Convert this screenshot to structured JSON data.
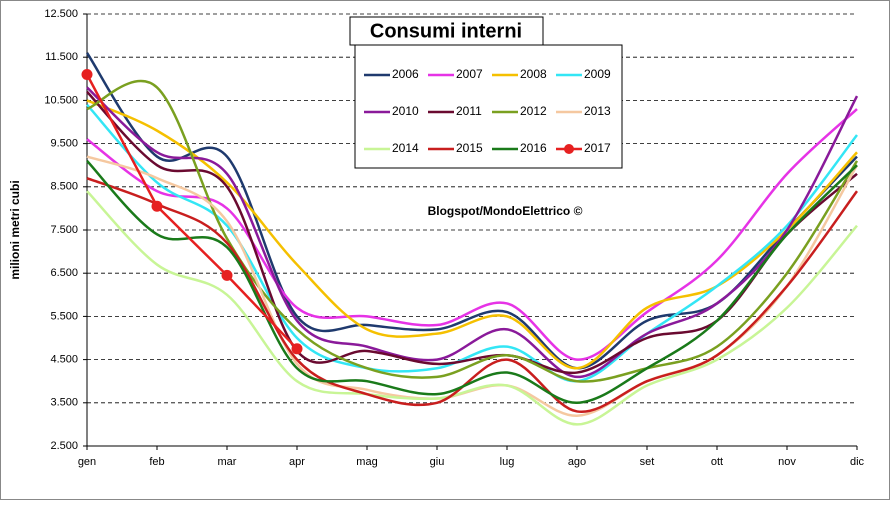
{
  "chart_data": {
    "type": "line",
    "title": "Consumi interni",
    "ylabel": "milioni metri cubi",
    "annotation": "Blogspot/MondoElettrico ©",
    "categories": [
      "gen",
      "feb",
      "mar",
      "apr",
      "mag",
      "giu",
      "lug",
      "ago",
      "set",
      "ott",
      "nov",
      "dic"
    ],
    "ylim": [
      2500,
      12500
    ],
    "yticks": [
      {
        "value": 2500,
        "label": "2.500"
      },
      {
        "value": 3500,
        "label": "3.500"
      },
      {
        "value": 4500,
        "label": "4.500"
      },
      {
        "value": 5500,
        "label": "5.500"
      },
      {
        "value": 6500,
        "label": "6.500"
      },
      {
        "value": 7500,
        "label": "7.500"
      },
      {
        "value": 8500,
        "label": "8.500"
      },
      {
        "value": 9500,
        "label": "9.500"
      },
      {
        "value": 10500,
        "label": "10.500"
      },
      {
        "value": 11500,
        "label": "11.500"
      },
      {
        "value": 12500,
        "label": "12.500"
      }
    ],
    "grid": true,
    "series": [
      {
        "name": "2006",
        "color": "#1f3a6e",
        "smooth": true,
        "values": [
          11600,
          9200,
          9200,
          5500,
          5300,
          5200,
          5600,
          4300,
          5400,
          5800,
          7500,
          9200
        ]
      },
      {
        "name": "2007",
        "color": "#e633e6",
        "smooth": true,
        "values": [
          9600,
          8400,
          8000,
          5700,
          5500,
          5300,
          5800,
          4500,
          5600,
          6800,
          8800,
          10300
        ]
      },
      {
        "name": "2008",
        "color": "#f5c000",
        "smooth": true,
        "values": [
          10500,
          9800,
          8600,
          6700,
          5200,
          5100,
          5500,
          4300,
          5700,
          6200,
          7500,
          9300
        ]
      },
      {
        "name": "2009",
        "color": "#33e6f5",
        "smooth": true,
        "values": [
          10400,
          8600,
          7600,
          5000,
          4300,
          4300,
          4800,
          4000,
          5100,
          6200,
          7600,
          9700
        ]
      },
      {
        "name": "2010",
        "color": "#8a1a9a",
        "smooth": true,
        "values": [
          10800,
          9300,
          8800,
          5400,
          4800,
          4500,
          5200,
          4100,
          5100,
          5800,
          7500,
          10600
        ]
      },
      {
        "name": "2011",
        "color": "#6a0a30",
        "smooth": true,
        "values": [
          10700,
          9000,
          8500,
          4700,
          4700,
          4400,
          4600,
          4200,
          5000,
          5400,
          7400,
          8800
        ]
      },
      {
        "name": "2012",
        "color": "#7aa020",
        "smooth": true,
        "values": [
          10300,
          10800,
          7300,
          5200,
          4300,
          4100,
          4600,
          4000,
          4300,
          4800,
          6500,
          9100
        ]
      },
      {
        "name": "2013",
        "color": "#f5c8a0",
        "smooth": true,
        "values": [
          9200,
          8700,
          7700,
          4400,
          3800,
          3600,
          3900,
          3200,
          4000,
          4600,
          6200,
          9000
        ]
      },
      {
        "name": "2014",
        "color": "#c8f596",
        "smooth": true,
        "values": [
          8400,
          6700,
          6000,
          4000,
          3700,
          3600,
          3900,
          3000,
          3900,
          4500,
          5700,
          7600
        ]
      },
      {
        "name": "2015",
        "color": "#c81e1e",
        "smooth": true,
        "values": [
          8700,
          8100,
          7200,
          4500,
          3700,
          3500,
          4500,
          3300,
          4000,
          4600,
          6200,
          8400
        ]
      },
      {
        "name": "2016",
        "color": "#1a7a1a",
        "smooth": true,
        "values": [
          9100,
          7400,
          7100,
          4300,
          4000,
          3700,
          4200,
          3500,
          4300,
          5400,
          7400,
          9000
        ]
      },
      {
        "name": "2017",
        "color": "#e62020",
        "smooth": false,
        "markers": true,
        "values": [
          11100,
          8050,
          6450,
          4750,
          null,
          null,
          null,
          null,
          null,
          null,
          null,
          null
        ]
      }
    ]
  }
}
